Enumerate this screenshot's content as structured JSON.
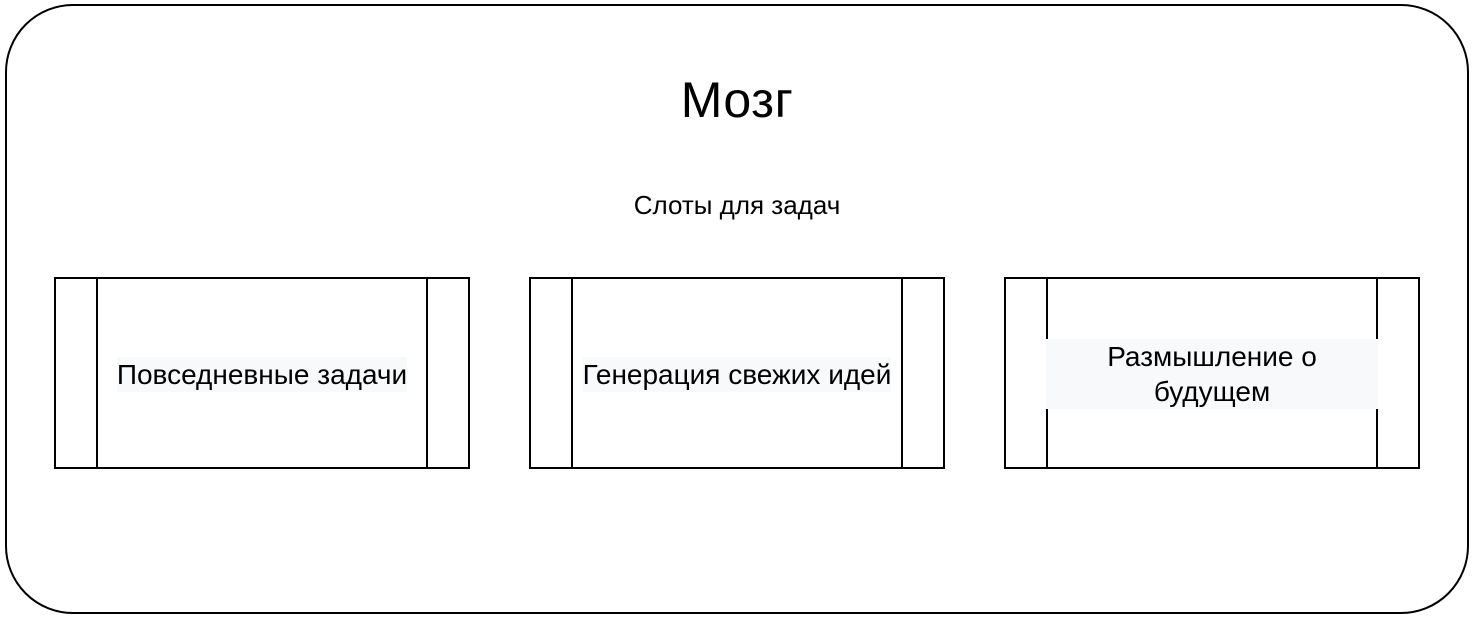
{
  "diagram": {
    "title": "Мозг",
    "subtitle": "Слоты для задач",
    "slots": [
      {
        "label": "Повседневные задачи"
      },
      {
        "label": "Генерация свежих идей"
      },
      {
        "label": "Размышление о будущем"
      }
    ]
  },
  "colors": {
    "stroke": "#000000",
    "background": "#ffffff",
    "label_highlight": "#f8f9fa"
  }
}
